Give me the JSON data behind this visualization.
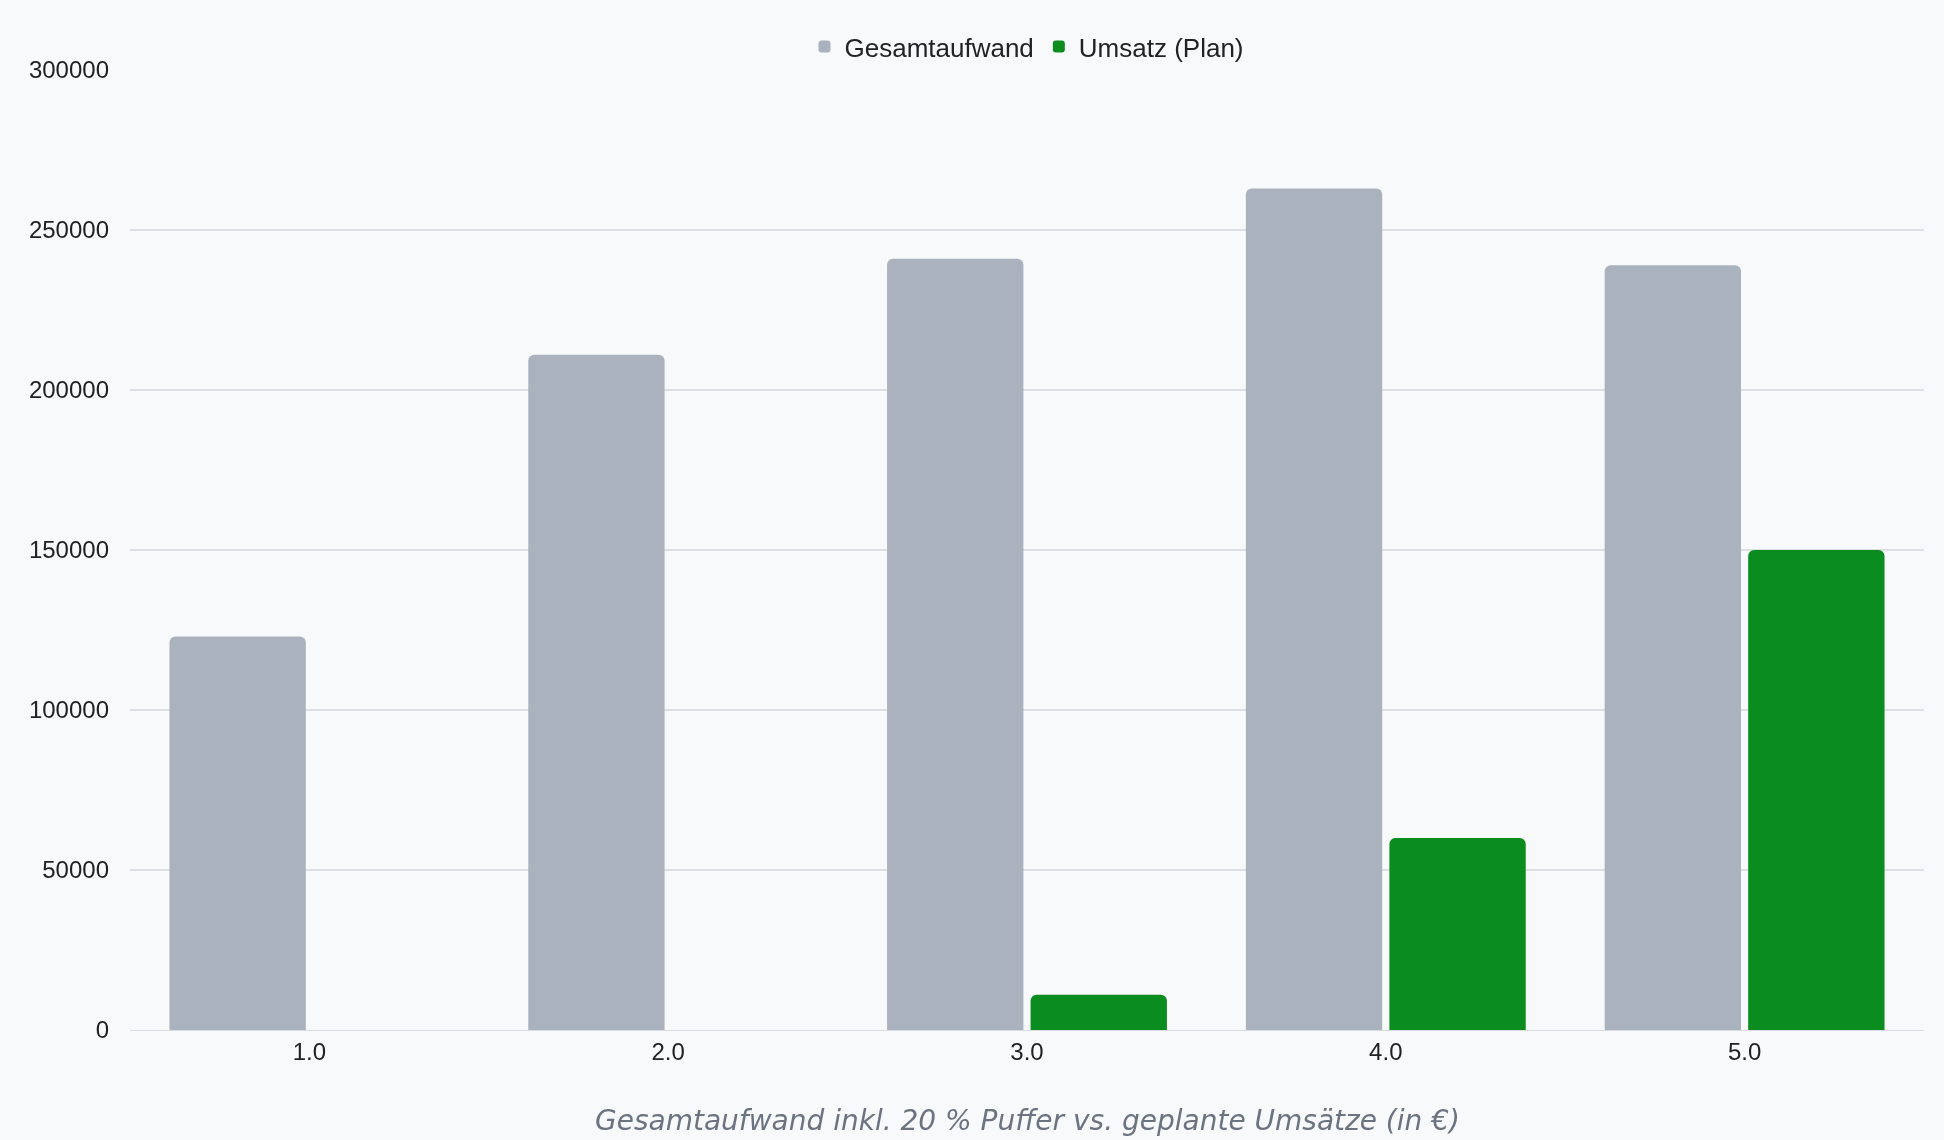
{
  "chart_data": {
    "type": "bar",
    "categories": [
      "1.0",
      "2.0",
      "3.0",
      "4.0",
      "5.0"
    ],
    "series": [
      {
        "name": "Gesamtaufwand",
        "color": "#aab3bd",
        "values": [
          123000,
          211000,
          241000,
          263000,
          239000
        ]
      },
      {
        "name": "Umsatz (Plan)",
        "color": "#0a8c1e",
        "values": [
          0,
          0,
          11000,
          60000,
          150000
        ]
      }
    ],
    "ylim": [
      0,
      300000
    ],
    "yticks": [
      0,
      50000,
      100000,
      150000,
      200000,
      250000,
      300000
    ],
    "grid": "y",
    "legend": "top",
    "annotations": [
      "Gesamtaufwand inkl. 20 % Puffer vs. geplante Umsätze (in €)"
    ]
  }
}
